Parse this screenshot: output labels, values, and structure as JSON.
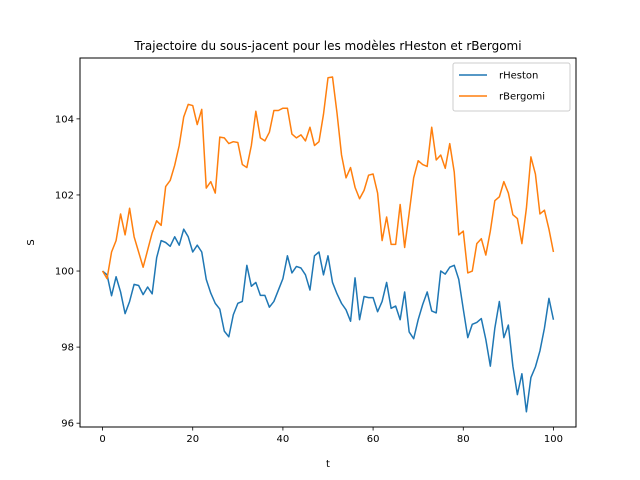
{
  "chart_data": {
    "type": "line",
    "title": "Trajectoire du sous-jacent pour les modèles rHeston et rBergomi",
    "xlabel": "t",
    "ylabel": "S",
    "xlim": [
      -5,
      105
    ],
    "ylim": [
      95.9,
      105.6
    ],
    "xticks": [
      0,
      20,
      40,
      60,
      80,
      100
    ],
    "yticks": [
      96,
      98,
      100,
      102,
      104
    ],
    "grid": false,
    "legend_position": "top-right",
    "x": [
      0,
      1,
      2,
      3,
      4,
      5,
      6,
      7,
      8,
      9,
      10,
      11,
      12,
      13,
      14,
      15,
      16,
      17,
      18,
      19,
      20,
      21,
      22,
      23,
      24,
      25,
      26,
      27,
      28,
      29,
      30,
      31,
      32,
      33,
      34,
      35,
      36,
      37,
      38,
      39,
      40,
      41,
      42,
      43,
      44,
      45,
      46,
      47,
      48,
      49,
      50,
      51,
      52,
      53,
      54,
      55,
      56,
      57,
      58,
      59,
      60,
      61,
      62,
      63,
      64,
      65,
      66,
      67,
      68,
      69,
      70,
      71,
      72,
      73,
      74,
      75,
      76,
      77,
      78,
      79,
      80,
      81,
      82,
      83,
      84,
      85,
      86,
      87,
      88,
      89,
      90,
      91,
      92,
      93,
      94,
      95,
      96,
      97,
      98,
      99,
      100
    ],
    "series": [
      {
        "name": "rHeston",
        "color": "#1f77b4",
        "values": [
          100.0,
          99.9,
          99.35,
          99.85,
          99.45,
          98.88,
          99.2,
          99.65,
          99.62,
          99.38,
          99.58,
          99.4,
          100.35,
          100.8,
          100.75,
          100.65,
          100.9,
          100.68,
          101.1,
          100.9,
          100.5,
          100.68,
          100.5,
          99.78,
          99.42,
          99.15,
          99.0,
          98.42,
          98.27,
          98.85,
          99.15,
          99.2,
          100.15,
          99.6,
          99.7,
          99.36,
          99.36,
          99.05,
          99.2,
          99.5,
          99.8,
          100.4,
          99.95,
          100.12,
          100.08,
          99.9,
          99.5,
          100.4,
          100.5,
          99.9,
          100.4,
          99.7,
          99.4,
          99.15,
          98.98,
          98.68,
          99.82,
          98.72,
          99.33,
          99.3,
          99.3,
          98.93,
          99.2,
          99.7,
          99.02,
          99.08,
          98.72,
          99.45,
          98.4,
          98.22,
          98.72,
          99.12,
          99.45,
          98.95,
          98.9,
          100.0,
          99.92,
          100.1,
          100.15,
          99.78,
          99.0,
          98.25,
          98.6,
          98.65,
          98.75,
          98.2,
          97.5,
          98.5,
          99.2,
          98.25,
          98.58,
          97.5,
          96.75,
          97.3,
          96.3,
          97.2,
          97.48,
          97.9,
          98.5,
          99.28,
          98.72
        ]
      },
      {
        "name": "rBergomi",
        "color": "#ff7f0e",
        "values": [
          100.0,
          99.8,
          100.5,
          100.8,
          101.5,
          100.95,
          101.65,
          100.9,
          100.5,
          100.1,
          100.55,
          101.0,
          101.32,
          101.2,
          102.22,
          102.38,
          102.78,
          103.3,
          104.05,
          104.38,
          104.35,
          103.85,
          104.25,
          102.18,
          102.35,
          102.05,
          103.52,
          103.5,
          103.35,
          103.4,
          103.38,
          102.8,
          102.72,
          103.3,
          104.2,
          103.5,
          103.42,
          103.65,
          104.22,
          104.22,
          104.28,
          104.28,
          103.6,
          103.5,
          103.58,
          103.42,
          103.78,
          103.3,
          103.4,
          104.12,
          105.08,
          105.1,
          104.15,
          103.05,
          102.45,
          102.72,
          102.2,
          101.9,
          102.12,
          102.52,
          102.55,
          102.05,
          100.8,
          101.42,
          100.7,
          100.7,
          101.75,
          100.62,
          101.52,
          102.45,
          102.9,
          102.8,
          102.75,
          103.78,
          102.92,
          103.05,
          102.7,
          103.35,
          102.6,
          100.95,
          101.05,
          99.95,
          100.0,
          100.72,
          100.85,
          100.42,
          101.05,
          101.85,
          101.95,
          102.35,
          102.05,
          101.48,
          101.38,
          100.72,
          101.65,
          103.0,
          102.55,
          101.5,
          101.6,
          101.1,
          100.5
        ]
      }
    ]
  }
}
